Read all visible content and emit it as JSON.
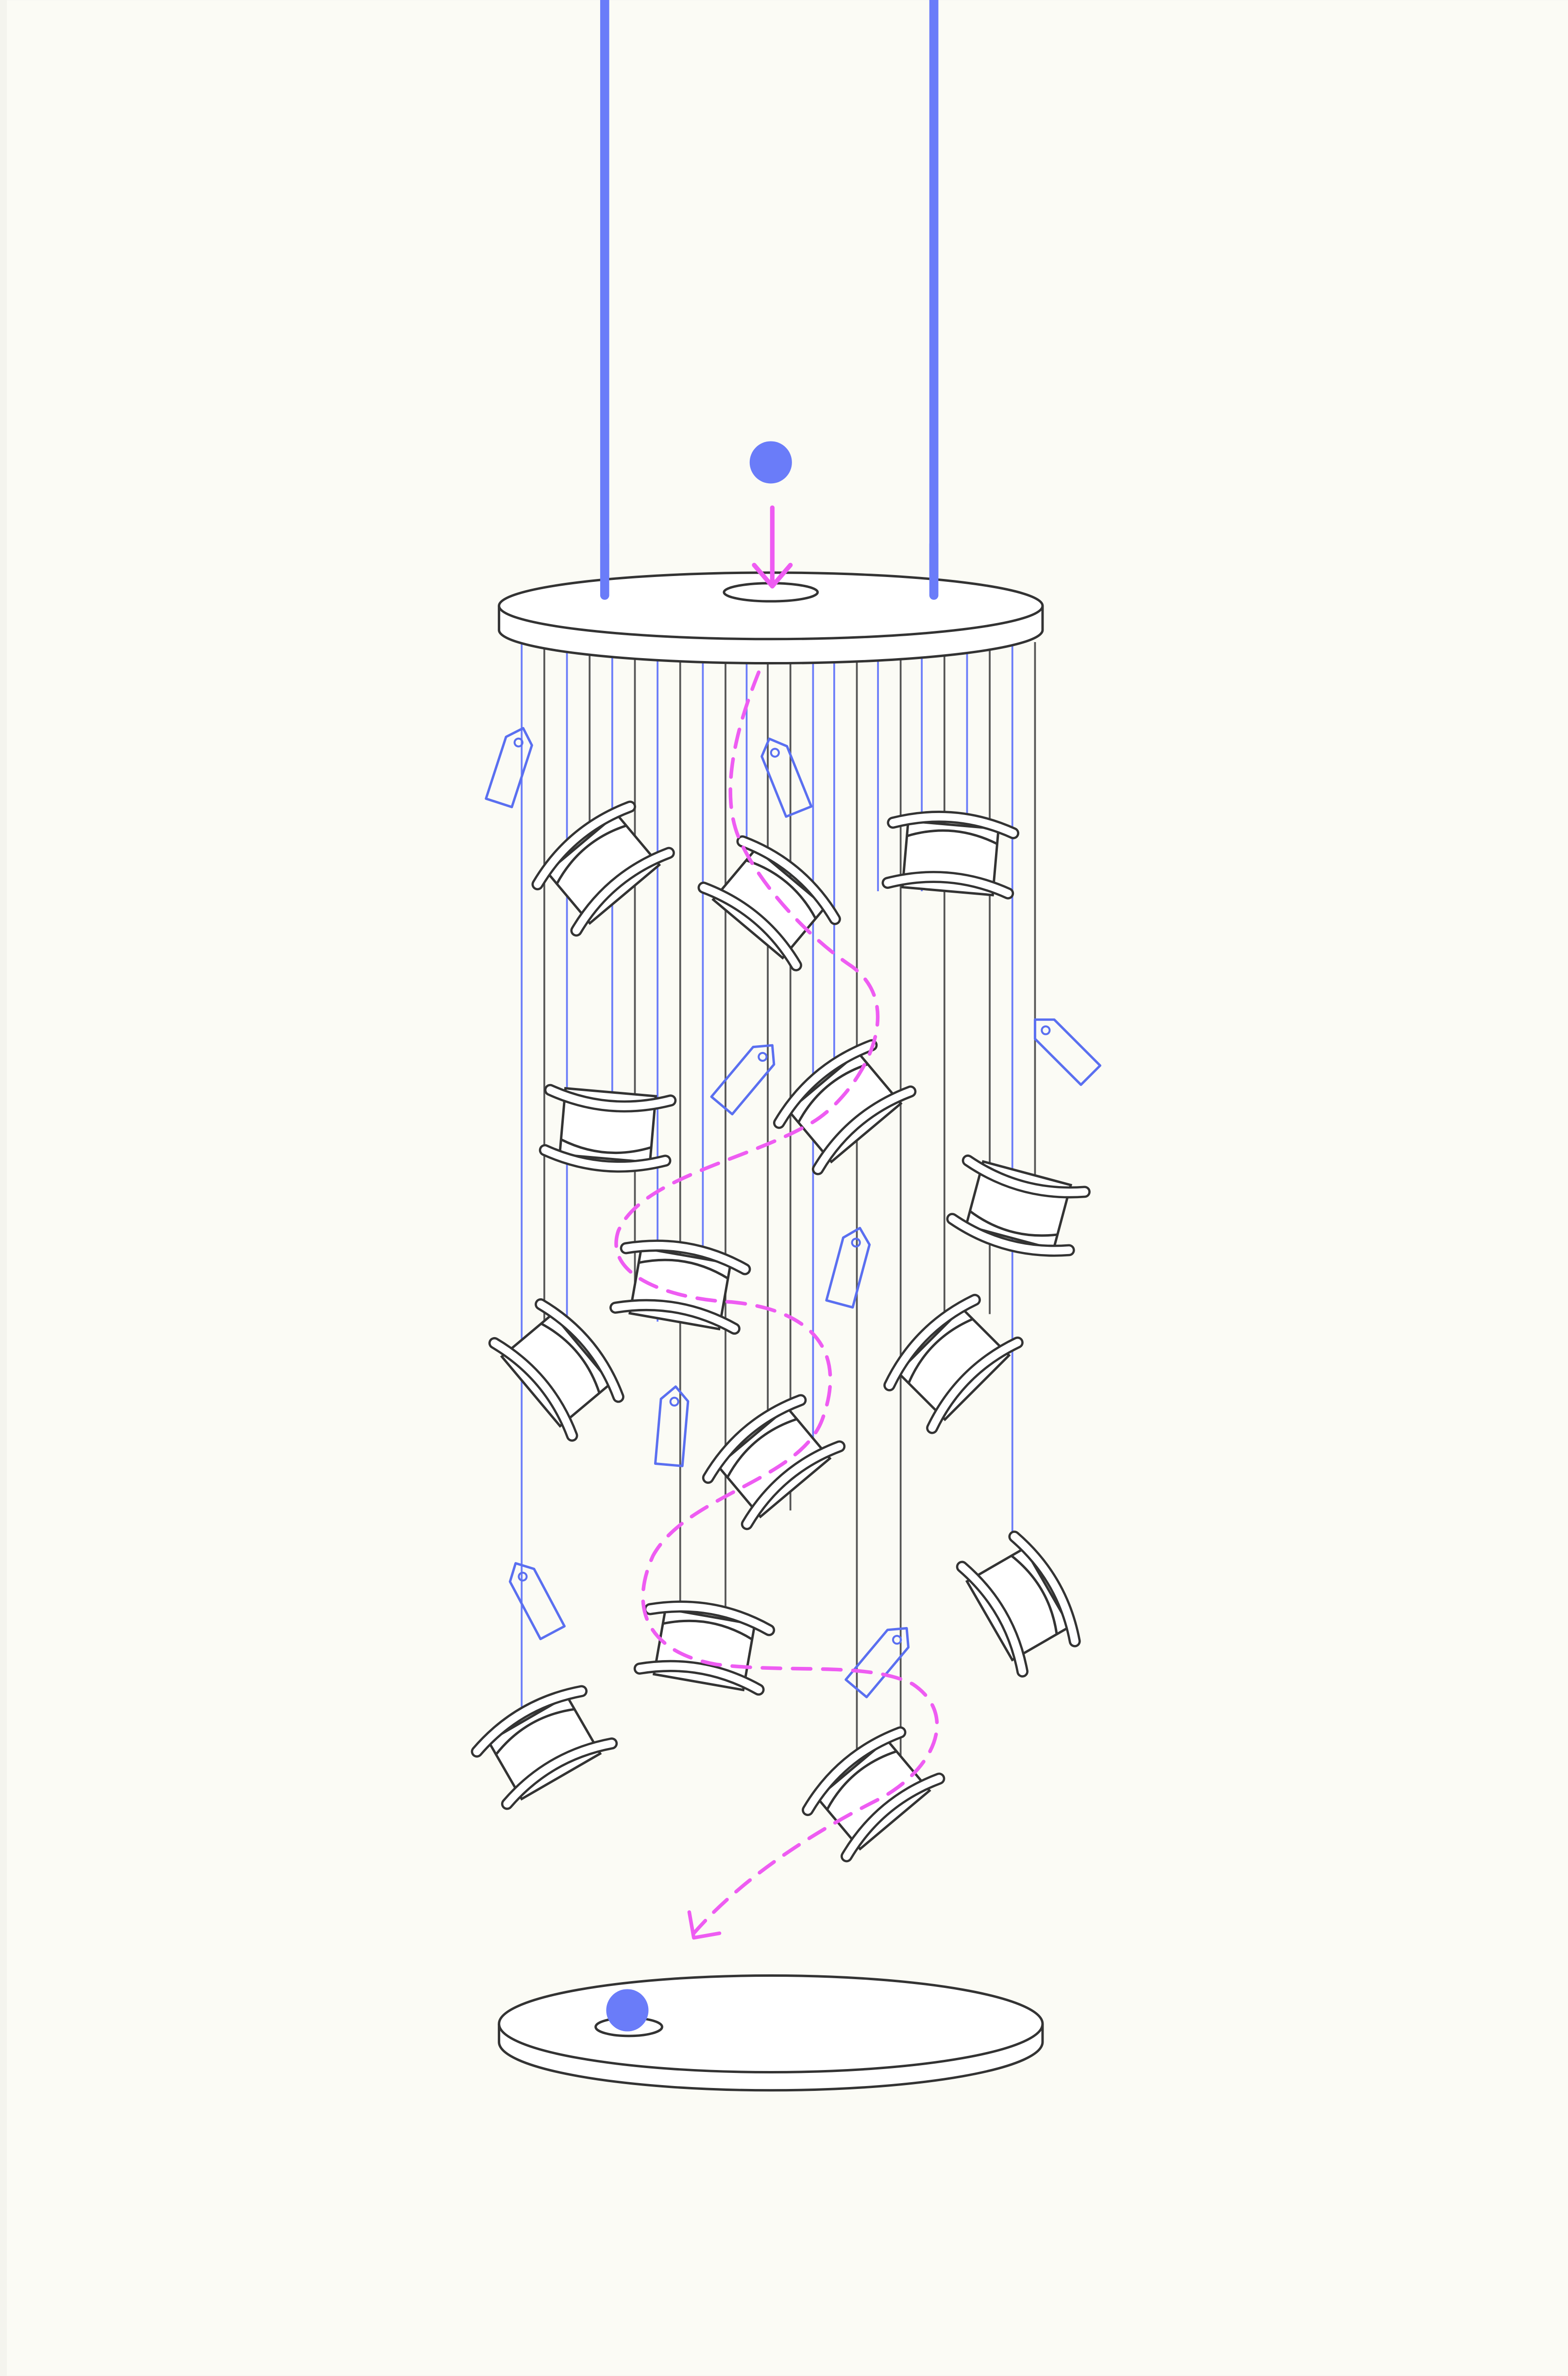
{
  "colors": {
    "background": "#fbfbf5",
    "outer_margin": "#f4f4ee",
    "rod": "#6a7cf9",
    "ball": "#6a7cf9",
    "blue_string": "#6a7cf9",
    "grey_string": "#555555",
    "path": "#ee5cf2",
    "outline": "#333333",
    "fill": "#ffffff",
    "tag": "#5a6ff0"
  },
  "elements": {
    "rods": [
      "support-rod",
      "support-rod"
    ],
    "top_disc": "top-disc",
    "bottom_disc": "bottom-disc",
    "ball_start": "ball-start",
    "ball_end": "ball-end",
    "path": "dashed-path",
    "spool_count": 18,
    "tag_count": 9,
    "icon_names": [
      "spool-icon",
      "price-tag-icon",
      "ball-icon",
      "arrow-icon"
    ]
  }
}
